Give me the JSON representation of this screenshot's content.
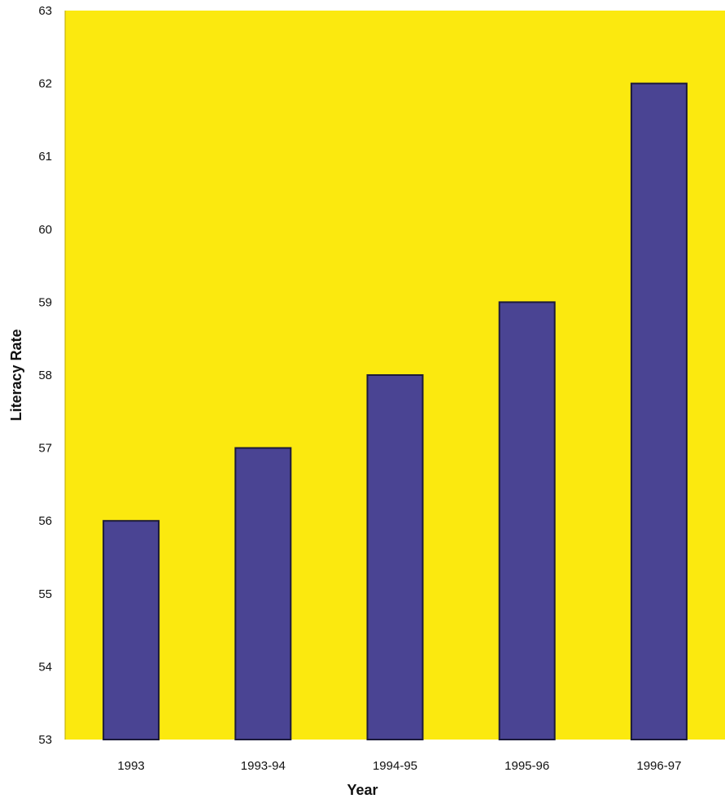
{
  "chart_data": {
    "type": "bar",
    "categories": [
      "1993",
      "1993-94",
      "1994-95",
      "1995-96",
      "1996-97"
    ],
    "values": [
      56,
      57,
      58,
      59,
      62
    ],
    "title": "",
    "xlabel": "Year",
    "ylabel": "Literacy Rate",
    "ylim": [
      53,
      63
    ],
    "yticks": [
      "53",
      "54",
      "55",
      "56",
      "57",
      "58",
      "59",
      "60",
      "61",
      "62",
      "63"
    ],
    "grid": false,
    "legend": "none",
    "colors": {
      "plot_background": "#fbe90f",
      "bar_fill": "#4a4493",
      "bar_stroke": "#1c1a3a"
    }
  }
}
